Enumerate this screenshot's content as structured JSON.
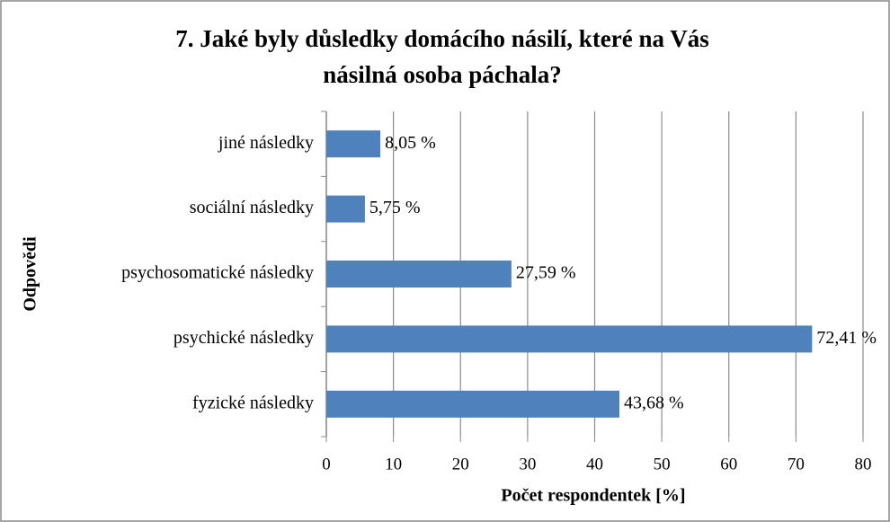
{
  "chart_data": {
    "type": "barh",
    "title": [
      "7. Jaké byly důsledky domácího násilí, které na Vás",
      "násilná osoba páchala?"
    ],
    "x_label": "Počet respondentek [%]",
    "y_label": "Odpovědi",
    "categories": [
      "jiné následky",
      "sociální následky",
      "psychosomatické následky",
      "psychické následky",
      "fyzické následky"
    ],
    "values": [
      8.05,
      5.75,
      27.59,
      72.41,
      43.68
    ],
    "value_labels": [
      "8,05 %",
      "5,75 %",
      "27,59 %",
      "72,41 %",
      "43,68 %"
    ],
    "color": "#4f81bd",
    "xlim": [
      0,
      80
    ],
    "xticks": [
      0,
      10,
      20,
      30,
      40,
      50,
      60,
      70,
      80
    ],
    "grid": true
  }
}
